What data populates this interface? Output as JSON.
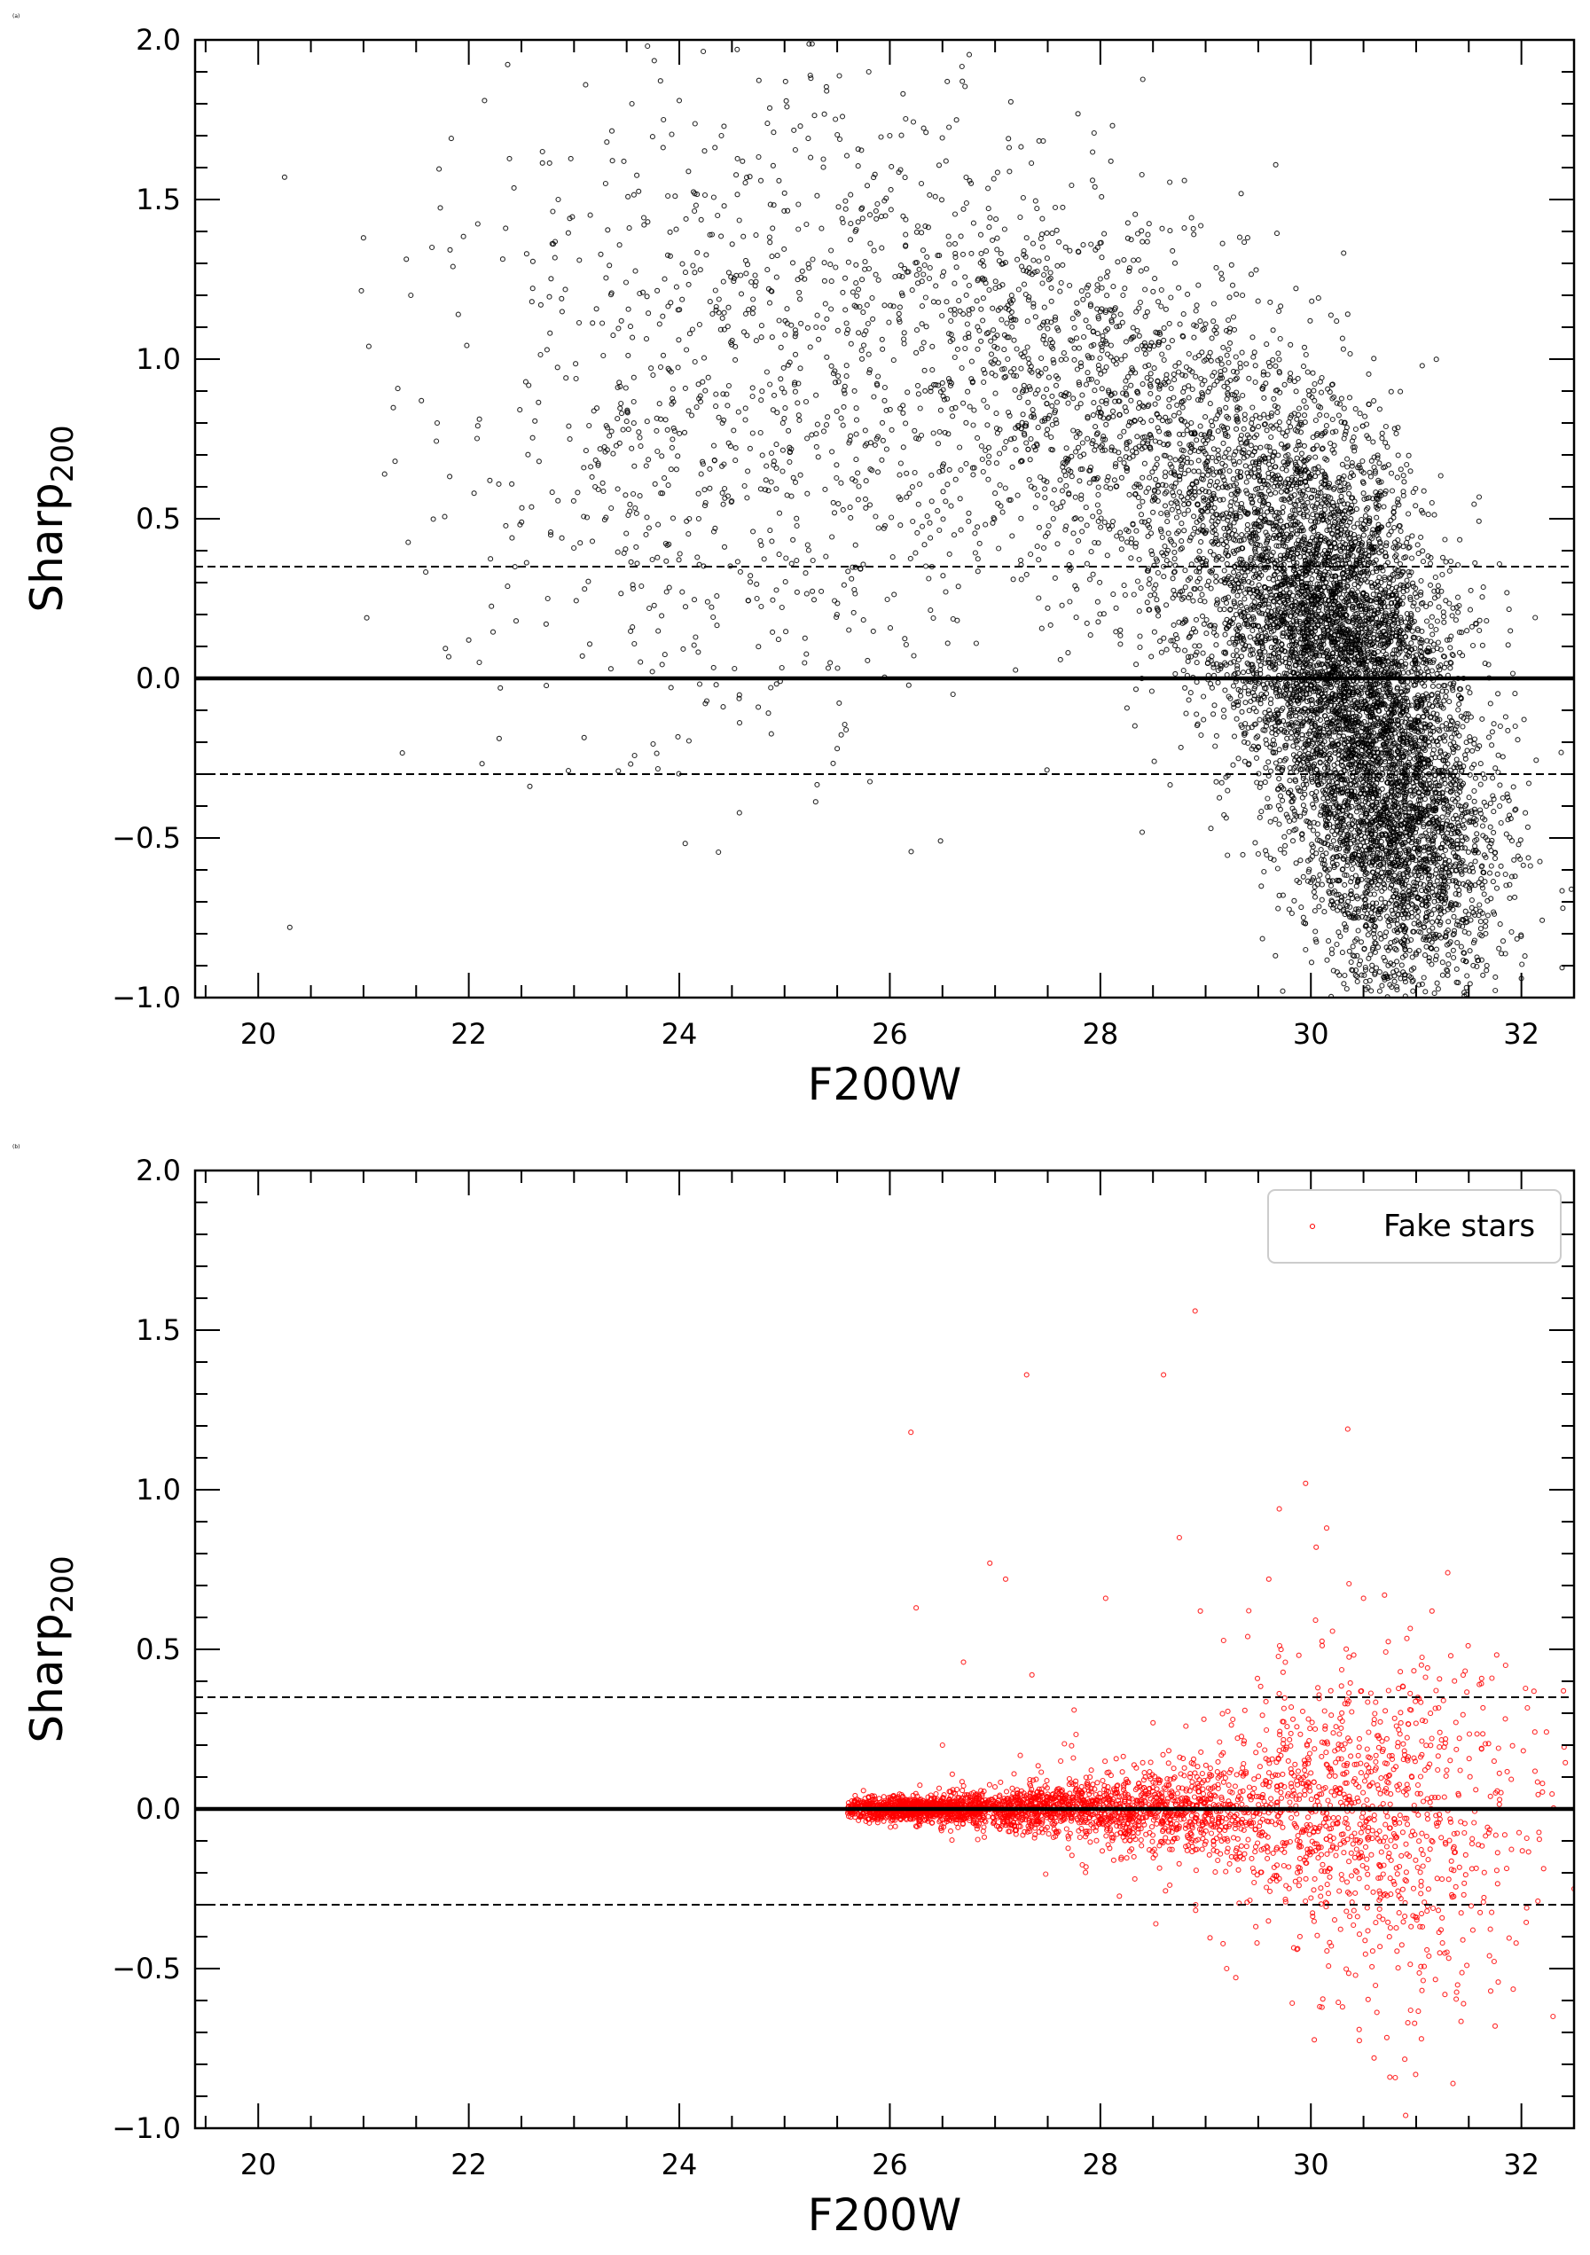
{
  "chart_data": [
    {
      "panel_tag": "(a)",
      "type": "scatter",
      "title": "",
      "xlabel": "F200W",
      "ylabel_main": "Sharp",
      "ylabel_sub": "200",
      "xlim": [
        19.4,
        32.5
      ],
      "ylim": [
        -1.0,
        2.0
      ],
      "xticks": [
        20,
        22,
        24,
        26,
        28,
        30,
        32
      ],
      "yticks": [
        -1.0,
        -0.5,
        0.0,
        0.5,
        1.0,
        1.5,
        2.0
      ],
      "ytick_labels": [
        "−1.0",
        "−0.5",
        "0.0",
        "0.5",
        "1.0",
        "1.5",
        "2.0"
      ],
      "hlines": [
        {
          "y": 0.0,
          "style": "solid"
        },
        {
          "y": 0.35,
          "style": "dashed"
        },
        {
          "y": -0.3,
          "style": "dashed"
        }
      ],
      "marker_color": "#000000",
      "legend": null,
      "series": [
        {
          "points": [
            [
              20.25,
              1.57
            ],
            [
              20.3,
              -0.78
            ],
            [
              21.0,
              1.38
            ],
            [
              21.05,
              1.04
            ],
            [
              21.2,
              0.64
            ],
            [
              21.3,
              0.68
            ],
            [
              21.45,
              1.2
            ],
            [
              21.55,
              0.87
            ],
            [
              21.65,
              1.35
            ],
            [
              21.7,
              0.8
            ],
            [
              21.85,
              1.29
            ],
            [
              21.9,
              1.14
            ],
            [
              22.0,
              0.12
            ],
            [
              22.05,
              0.58
            ],
            [
              22.1,
              0.05
            ],
            [
              22.15,
              1.81
            ],
            [
              22.2,
              0.62
            ],
            [
              22.3,
              -0.03
            ],
            [
              22.35,
              1.41
            ],
            [
              22.45,
              0.18
            ],
            [
              22.55,
              1.33
            ],
            [
              22.6,
              1.18
            ],
            [
              22.7,
              1.65
            ],
            [
              22.75,
              0.25
            ],
            [
              22.85,
              1.5
            ],
            [
              22.95,
              0.79
            ],
            [
              23.05,
              1.31
            ],
            [
              23.1,
              0.28
            ],
            [
              23.2,
              0.6
            ],
            [
              23.3,
              1.55
            ],
            [
              23.35,
              0.03
            ],
            [
              23.45,
              1.12
            ],
            [
              23.55,
              1.8
            ],
            [
              23.6,
              0.36
            ],
            [
              23.7,
              1.43
            ],
            [
              23.75,
              0.95
            ],
            [
              23.85,
              1.75
            ],
            [
              23.9,
              0.42
            ],
            [
              24.0,
              1.81
            ],
            [
              24.05,
              0.77
            ],
            [
              24.1,
              1.08
            ],
            [
              24.2,
              1.28
            ],
            [
              24.25,
              0.55
            ],
            [
              24.35,
              -0.02
            ],
            [
              24.4,
              1.7
            ],
            [
              24.45,
              0.89
            ],
            [
              24.55,
              1.97
            ],
            [
              24.6,
              1.62
            ],
            [
              24.7,
              0.46
            ],
            [
              24.75,
              -0.09
            ],
            [
              24.85,
              1.22
            ],
            [
              24.9,
              0.68
            ],
            [
              25.0,
              1.52
            ],
            [
              25.05,
              0.99
            ],
            [
              25.15,
              1.73
            ],
            [
              25.2,
              0.33
            ],
            [
              25.25,
              1.88
            ],
            [
              25.3,
              1.1
            ],
            [
              25.4,
              1.84
            ],
            [
              25.45,
              0.71
            ],
            [
              25.5,
              -0.22
            ],
            [
              25.55,
              1.76
            ],
            [
              25.65,
              1.21
            ],
            [
              25.7,
              0.56
            ],
            [
              25.8,
              1.9
            ],
            [
              25.85,
              1.34
            ],
            [
              25.95,
              0.87
            ],
            [
              26.0,
              1.7
            ],
            [
              26.1,
              0.48
            ],
            [
              26.15,
              1.39
            ],
            [
              26.25,
              1.02
            ],
            [
              26.3,
              1.55
            ],
            [
              26.4,
              0.35
            ],
            [
              26.5,
              1.26
            ],
            [
              26.55,
              0.11
            ],
            [
              26.6,
              -0.05
            ],
            [
              26.7,
              1.47
            ],
            [
              26.8,
              0.84
            ],
            [
              26.9,
              1.25
            ],
            [
              27.0,
              0.58
            ],
            [
              27.05,
              1.16
            ],
            [
              27.15,
              0.96
            ],
            [
              27.25,
              0.31
            ],
            [
              27.3,
              1.38
            ],
            [
              27.4,
              0.73
            ],
            [
              27.5,
              0.22
            ],
            [
              27.6,
              1.09
            ],
            [
              27.7,
              0.58
            ],
            [
              27.8,
              0.92
            ],
            [
              27.9,
              0.31
            ],
            [
              28.0,
              0.82
            ],
            [
              28.1,
              1.62
            ],
            [
              28.15,
              0.22
            ],
            [
              28.25,
              0.72
            ],
            [
              28.35,
              1.03
            ],
            [
              28.45,
              0.48
            ],
            [
              28.55,
              1.18
            ],
            [
              28.6,
              0.35
            ],
            [
              28.7,
              0.64
            ],
            [
              28.8,
              0.91
            ],
            [
              28.9,
              0.28
            ],
            [
              29.0,
              1.11
            ],
            [
              29.05,
              -0.47
            ],
            [
              29.1,
              0.45
            ],
            [
              29.2,
              0.82
            ],
            [
              29.3,
              0.03
            ],
            [
              29.35,
              1.2
            ],
            [
              29.45,
              0.36
            ],
            [
              29.5,
              -0.55
            ],
            [
              29.55,
              0.62
            ],
            [
              29.6,
              -0.13
            ],
            [
              29.65,
              0.24
            ],
            [
              29.7,
              -0.68
            ],
            [
              29.75,
              0.92
            ],
            [
              29.8,
              -0.32
            ],
            [
              29.85,
              0.48
            ],
            [
              29.9,
              0.08
            ],
            [
              29.95,
              -0.85
            ],
            [
              30.0,
              0.36
            ],
            [
              30.05,
              -0.18
            ],
            [
              30.1,
              0.76
            ],
            [
              30.15,
              -0.46
            ],
            [
              30.2,
              0.02
            ],
            [
              30.25,
              -0.92
            ],
            [
              30.3,
              0.41
            ],
            [
              30.35,
              -0.28
            ],
            [
              30.4,
              0.14
            ],
            [
              30.45,
              -0.63
            ],
            [
              30.5,
              0.58
            ],
            [
              30.55,
              -0.09
            ],
            [
              30.6,
              -0.79
            ],
            [
              30.65,
              0.26
            ],
            [
              30.7,
              -0.41
            ],
            [
              30.75,
              -0.96
            ],
            [
              30.8,
              0.05
            ],
            [
              30.85,
              -0.55
            ],
            [
              30.9,
              0.38
            ],
            [
              30.95,
              -0.22
            ],
            [
              31.0,
              -0.86
            ],
            [
              31.05,
              0.12
            ],
            [
              31.1,
              -0.36
            ],
            [
              31.15,
              0.55
            ],
            [
              31.2,
              -0.68
            ],
            [
              31.25,
              -0.04
            ],
            [
              31.3,
              -0.93
            ],
            [
              31.35,
              0.22
            ],
            [
              31.4,
              -0.48
            ],
            [
              31.45,
              0.0
            ],
            [
              31.5,
              -0.74
            ],
            [
              31.55,
              -0.27
            ],
            [
              31.6,
              0.15
            ],
            [
              31.7,
              -0.61
            ],
            [
              31.8,
              -0.15
            ]
          ],
          "density_clouds": [
            {
              "x_center": 30.35,
              "x_sd": 0.62,
              "y_center": 0.0,
              "y_sd": 0.36,
              "slope": -0.32,
              "count": 5400
            },
            {
              "x_center": 29.0,
              "x_sd": 0.95,
              "y_center": 0.55,
              "y_sd": 0.34,
              "slope": -0.24,
              "count": 1300
            },
            {
              "x_center": 30.9,
              "x_sd": 0.38,
              "y_center": -0.55,
              "y_sd": 0.22,
              "slope": 0.0,
              "count": 900
            },
            {
              "x_center": 27.3,
              "x_sd": 1.05,
              "y_center": 0.95,
              "y_sd": 0.32,
              "slope": -0.15,
              "count": 700
            },
            {
              "x_center": 24.7,
              "x_sd": 1.35,
              "y_center": 0.85,
              "y_sd": 0.5,
              "slope": 0.05,
              "count": 900
            }
          ]
        }
      ]
    },
    {
      "panel_tag": "(b)",
      "type": "scatter",
      "title": "",
      "xlabel": "F200W",
      "ylabel_main": "Sharp",
      "ylabel_sub": "200",
      "xlim": [
        19.4,
        32.5
      ],
      "ylim": [
        -1.0,
        2.0
      ],
      "xticks": [
        20,
        22,
        24,
        26,
        28,
        30,
        32
      ],
      "yticks": [
        -1.0,
        -0.5,
        0.0,
        0.5,
        1.0,
        1.5,
        2.0
      ],
      "ytick_labels": [
        "−1.0",
        "−0.5",
        "0.0",
        "0.5",
        "1.0",
        "1.5",
        "2.0"
      ],
      "hlines": [
        {
          "y": 0.0,
          "style": "solid"
        },
        {
          "y": 0.35,
          "style": "dashed"
        },
        {
          "y": -0.3,
          "style": "dashed"
        }
      ],
      "marker_color": "#ff0000",
      "legend": {
        "location": "top-right",
        "entries": [
          "Fake stars"
        ]
      },
      "series": [
        {
          "name": "Fake stars",
          "points": [
            [
              26.2,
              1.18
            ],
            [
              26.25,
              0.63
            ],
            [
              26.5,
              0.2
            ],
            [
              26.7,
              0.46
            ],
            [
              26.95,
              0.77
            ],
            [
              27.1,
              0.72
            ],
            [
              27.3,
              1.36
            ],
            [
              27.35,
              0.42
            ],
            [
              27.75,
              0.31
            ],
            [
              28.05,
              0.66
            ],
            [
              28.5,
              0.27
            ],
            [
              28.6,
              1.36
            ],
            [
              28.75,
              0.85
            ],
            [
              28.9,
              1.56
            ],
            [
              28.95,
              0.62
            ],
            [
              29.2,
              -0.5
            ],
            [
              29.4,
              0.54
            ],
            [
              29.6,
              0.72
            ],
            [
              29.7,
              0.94
            ],
            [
              29.95,
              1.02
            ],
            [
              30.05,
              0.82
            ],
            [
              30.15,
              0.88
            ],
            [
              30.3,
              -0.62
            ],
            [
              30.35,
              1.19
            ],
            [
              30.5,
              0.66
            ],
            [
              30.6,
              -0.78
            ],
            [
              30.7,
              0.67
            ],
            [
              30.75,
              -0.84
            ],
            [
              30.85,
              0.43
            ],
            [
              30.9,
              -0.96
            ],
            [
              31.05,
              -0.72
            ],
            [
              31.15,
              0.62
            ],
            [
              31.3,
              0.74
            ],
            [
              31.35,
              -0.86
            ],
            [
              31.45,
              -0.61
            ],
            [
              31.6,
              0.39
            ],
            [
              31.75,
              -0.68
            ],
            [
              31.85,
              0.45
            ],
            [
              31.95,
              -0.42
            ],
            [
              32.05,
              -0.31
            ],
            [
              32.2,
              0.08
            ],
            [
              32.3,
              -0.65
            ],
            [
              32.4,
              0.37
            ],
            [
              32.5,
              -0.25
            ]
          ],
          "density_clouds": [
            {
              "x_center": 26.2,
              "x_sd": 0.35,
              "x_min": 25.6,
              "y_center": 0.0,
              "y_sd": 0.018,
              "slope": 0.0,
              "count": 900
            },
            {
              "x_center": 27.3,
              "x_sd": 0.55,
              "x_min": 25.6,
              "y_center": 0.0,
              "y_sd": 0.035,
              "slope": 0.0,
              "count": 900
            },
            {
              "x_center": 28.6,
              "x_sd": 0.6,
              "x_min": 25.6,
              "y_center": 0.0,
              "y_sd": 0.07,
              "slope": 0.0,
              "count": 700
            },
            {
              "x_center": 30.1,
              "x_sd": 0.75,
              "x_min": 25.6,
              "y_center": 0.0,
              "y_sd": 0.18,
              "slope": 0.0,
              "count": 700
            },
            {
              "x_center": 31.0,
              "x_sd": 0.55,
              "x_min": 25.6,
              "y_center": -0.08,
              "y_sd": 0.3,
              "slope": 0.0,
              "count": 350
            }
          ]
        }
      ]
    }
  ]
}
